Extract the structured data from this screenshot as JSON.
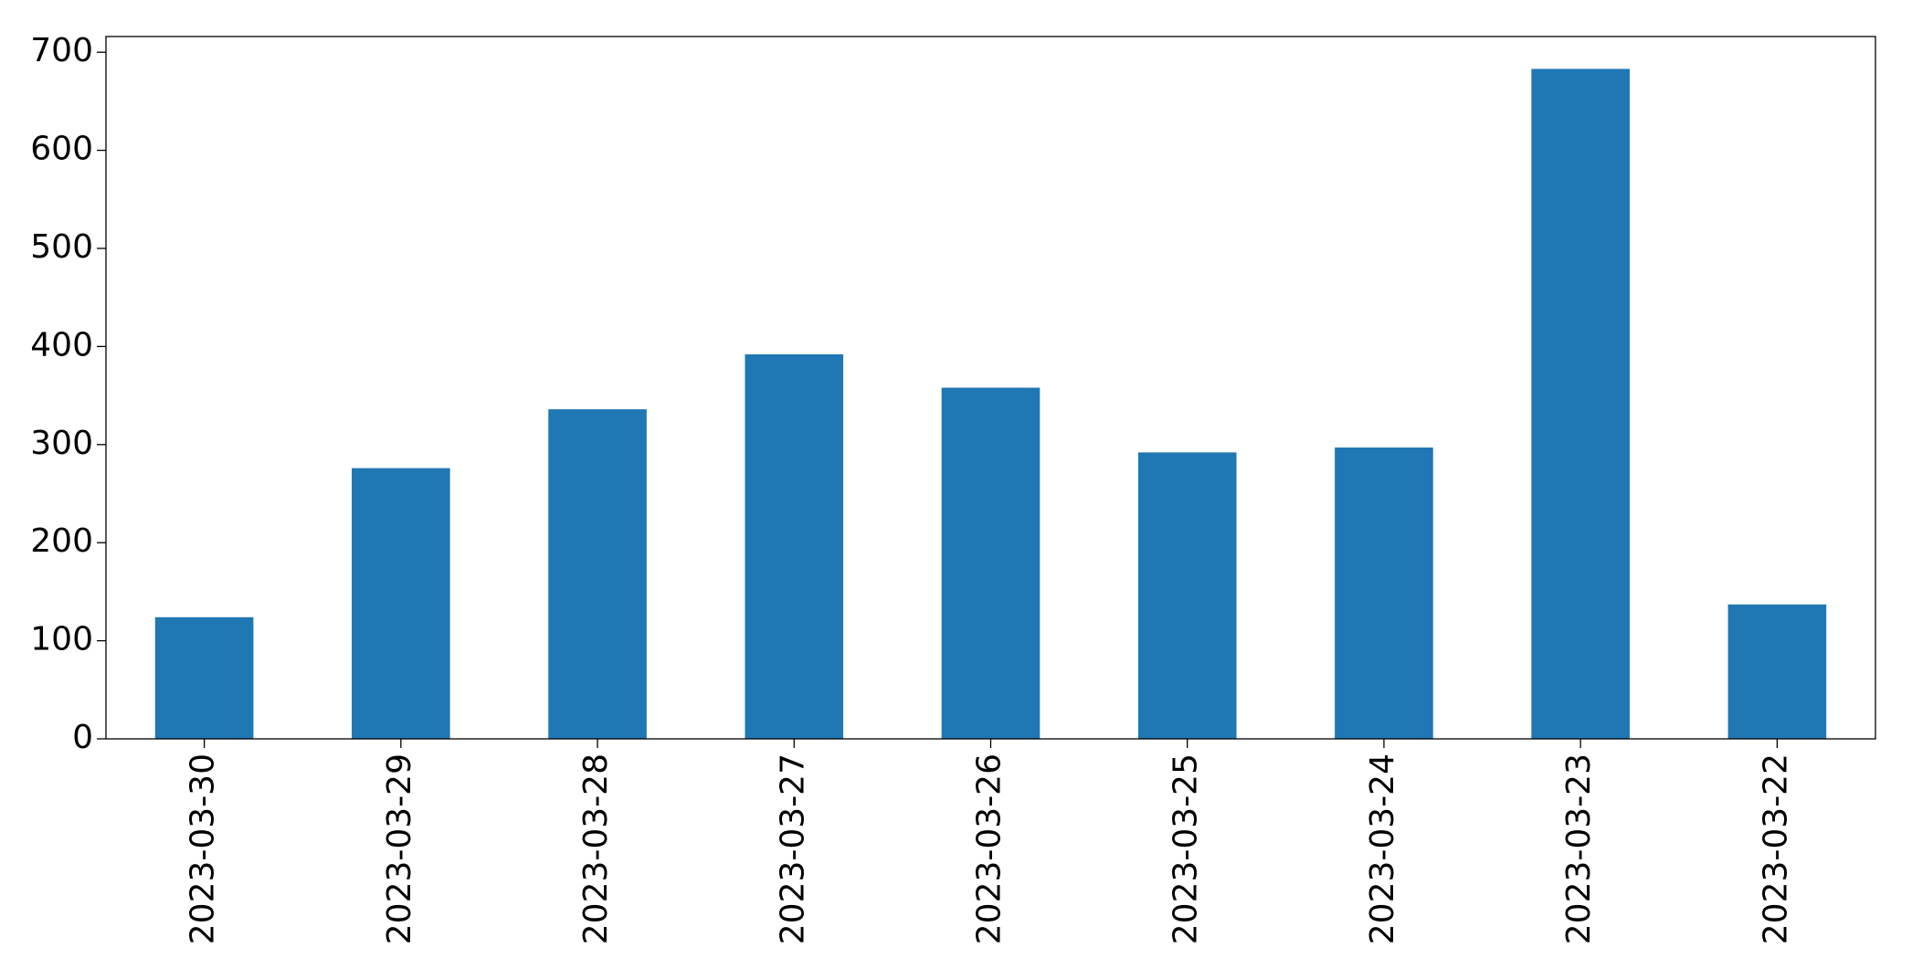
{
  "chart_data": {
    "type": "bar",
    "categories": [
      "2023-03-30",
      "2023-03-29",
      "2023-03-28",
      "2023-03-27",
      "2023-03-26",
      "2023-03-25",
      "2023-03-24",
      "2023-03-23",
      "2023-03-22"
    ],
    "values": [
      124,
      276,
      336,
      392,
      358,
      292,
      297,
      683,
      137
    ],
    "color": "#1f77b4",
    "ylim": [
      0,
      716
    ],
    "yticks": [
      0,
      100,
      200,
      300,
      400,
      500,
      600,
      700
    ],
    "grid": false
  }
}
